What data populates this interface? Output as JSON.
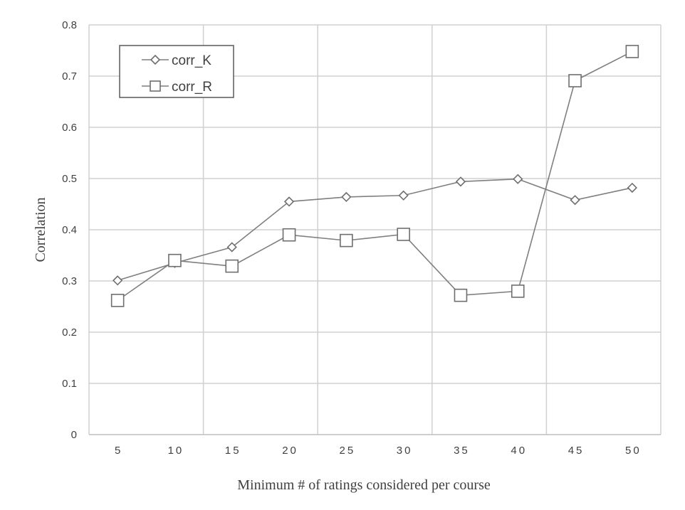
{
  "chart_data": {
    "type": "line",
    "categories": [
      "5",
      "10",
      "15",
      "20",
      "25",
      "30",
      "35",
      "40",
      "45",
      "50"
    ],
    "series": [
      {
        "name": "corr_K",
        "marker": "diamond",
        "values": [
          0.301,
          0.335,
          0.366,
          0.455,
          0.464,
          0.467,
          0.494,
          0.499,
          0.458,
          0.482
        ]
      },
      {
        "name": "corr_R",
        "marker": "square",
        "values": [
          0.262,
          0.34,
          0.329,
          0.39,
          0.379,
          0.391,
          0.272,
          0.28,
          0.691,
          0.748
        ]
      }
    ],
    "title": "",
    "xlabel": "Minimum # of ratings considered per course",
    "ylabel": "Correlation",
    "ylim": [
      0,
      0.8
    ],
    "yticks": [
      "0",
      "0.1",
      "0.2",
      "0.3",
      "0.4",
      "0.5",
      "0.6",
      "0.7",
      "0.8"
    ],
    "grid": true,
    "legend_position": "top-left",
    "line_color": "#7f7f7f",
    "grid_color": "#d0d0d0"
  }
}
